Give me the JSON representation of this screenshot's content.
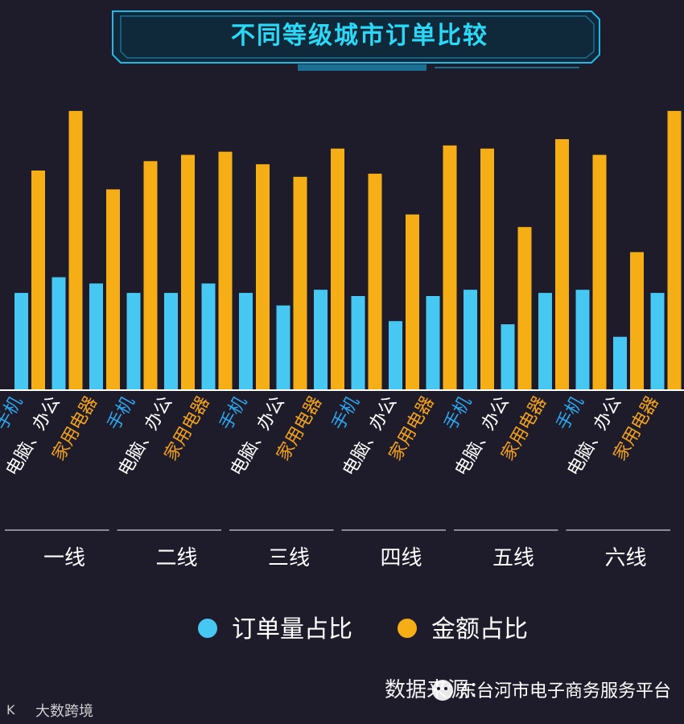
{
  "chart_data": {
    "type": "bar",
    "title": "不同等级城市订单比较",
    "groups": [
      "一线",
      "二线",
      "三线",
      "四线",
      "五线",
      "六线"
    ],
    "subcategories": [
      {
        "label": "手机",
        "color": "#2ea6ee"
      },
      {
        "label": "电脑、办公",
        "color": "#ffffff"
      },
      {
        "label": "家用电器",
        "color": "#f4a21c"
      }
    ],
    "series": [
      {
        "name": "订单量占比",
        "color": "#47c8f2",
        "values": [
          [
            31,
            36,
            34
          ],
          [
            31,
            31,
            34
          ],
          [
            31,
            27,
            32
          ],
          [
            30,
            22,
            30
          ],
          [
            32,
            21,
            31
          ],
          [
            32,
            17,
            31
          ]
        ]
      },
      {
        "name": "金额占比",
        "color": "#f6ae16",
        "values": [
          [
            70,
            89,
            64
          ],
          [
            73,
            75,
            76
          ],
          [
            72,
            68,
            77
          ],
          [
            69,
            56,
            78
          ],
          [
            77,
            52,
            80
          ],
          [
            75,
            44,
            89
          ]
        ]
      }
    ],
    "ylim": [
      0,
      100
    ],
    "legend": "bottom",
    "grid": false
  },
  "source_text": "数据来源：",
  "watermarks": {
    "wechat": "东台河市电子商务服务平台",
    "corner": "大数跨境"
  }
}
